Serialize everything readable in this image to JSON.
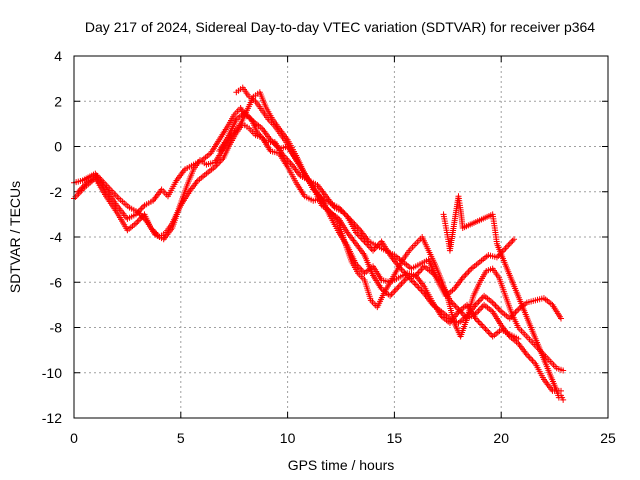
{
  "chart_data": {
    "type": "scatter",
    "title": "Day 217 of 2024, Sidereal Day-to-day VTEC variation (SDTVAR) for receiver p364",
    "xlabel": "GPS time / hours",
    "ylabel": "SDTVAR / TECUs",
    "xlim": [
      0,
      25
    ],
    "ylim": [
      -12,
      4
    ],
    "xticks": [
      0,
      5,
      10,
      15,
      20,
      25
    ],
    "yticks": [
      -12,
      -10,
      -8,
      -6,
      -4,
      -2,
      0,
      2,
      4
    ],
    "grid": true,
    "marker": "+",
    "color": "#ff0000",
    "series": [
      {
        "name": "track-1",
        "x": [
          0.0,
          0.4,
          1.0,
          1.5,
          2.0,
          2.5,
          2.9,
          3.3,
          3.7,
          4.1,
          4.4,
          4.8,
          5.2,
          5.6,
          6.0,
          6.4,
          6.8,
          7.2,
          7.5,
          7.8,
          8.0,
          8.3,
          8.6,
          9.0,
          9.4,
          9.8,
          10.2,
          10.6,
          11.0,
          11.4,
          11.8,
          12.2,
          12.6,
          13.0,
          13.4,
          13.8,
          14.2,
          14.6,
          15.0,
          15.4,
          15.8,
          16.2,
          16.6,
          17.0,
          17.4,
          17.8,
          18.2,
          18.6,
          19.0,
          19.4,
          19.8,
          20.2,
          20.6
        ],
        "y": [
          -1.6,
          -1.5,
          -1.2,
          -1.9,
          -2.6,
          -3.2,
          -3.0,
          -2.6,
          -2.4,
          -1.9,
          -2.2,
          -1.5,
          -1.0,
          -0.8,
          -0.6,
          -0.3,
          0.3,
          0.9,
          1.4,
          1.7,
          1.4,
          1.2,
          0.6,
          0.2,
          0.2,
          -0.4,
          -0.8,
          -1.3,
          -1.5,
          -1.7,
          -2.2,
          -2.7,
          -2.9,
          -3.3,
          -3.7,
          -4.2,
          -4.4,
          -4.6,
          -4.8,
          -5.1,
          -5.4,
          -5.2,
          -5.0,
          -5.9,
          -6.6,
          -6.3,
          -5.8,
          -5.4,
          -5.1,
          -4.8,
          -4.9,
          -4.5,
          -4.1
        ]
      },
      {
        "name": "track-2",
        "x": [
          0.0,
          0.5,
          1.0,
          1.5,
          2.0,
          2.5,
          2.9,
          3.3,
          3.6,
          4.0,
          4.3,
          4.6,
          5.0,
          5.4,
          5.8,
          6.2,
          6.6,
          7.0,
          7.3,
          7.6,
          7.9,
          8.2,
          8.5,
          8.8,
          9.2,
          9.6,
          10.0,
          10.4,
          10.8,
          11.2,
          11.6,
          12.0,
          12.4,
          12.8,
          13.2,
          13.6,
          14.0,
          14.4,
          14.8,
          15.2,
          15.6,
          16.0,
          16.4,
          16.8,
          17.2,
          17.6,
          18.0,
          18.4,
          18.8,
          19.2,
          19.6,
          20.0,
          20.4,
          20.8
        ],
        "y": [
          -2.3,
          -1.8,
          -1.4,
          -2.2,
          -2.9,
          -3.7,
          -3.4,
          -3.0,
          -3.6,
          -4.0,
          -3.8,
          -3.4,
          -2.6,
          -2.0,
          -1.5,
          -1.2,
          -0.9,
          -0.5,
          0.1,
          0.6,
          1.0,
          0.8,
          0.5,
          0.4,
          -0.2,
          -0.3,
          -0.9,
          -1.6,
          -2.2,
          -2.4,
          -2.3,
          -3.1,
          -3.8,
          -4.4,
          -5.2,
          -5.6,
          -5.3,
          -5.9,
          -6.0,
          -5.8,
          -5.6,
          -5.7,
          -6.2,
          -6.9,
          -7.5,
          -7.8,
          -7.3,
          -7.0,
          -7.6,
          -8.0,
          -8.4,
          -8.1,
          -8.3,
          -8.5
        ]
      },
      {
        "name": "track-3",
        "x": [
          0.2,
          0.6,
          1.1,
          1.6,
          2.1,
          2.6,
          3.0,
          3.4,
          3.8,
          4.2,
          4.6,
          5.0,
          5.3,
          5.6,
          5.9,
          6.2,
          6.6,
          7.0,
          7.4,
          7.8,
          8.1,
          8.4,
          8.7,
          9.0,
          9.3,
          9.6,
          10.0,
          10.4,
          10.8,
          11.2,
          11.6,
          12.0,
          12.4,
          12.8,
          13.2,
          13.6,
          14.0,
          14.4,
          14.8,
          15.2,
          15.6,
          16.0,
          16.4,
          16.8,
          17.2,
          17.6,
          18.0,
          18.4,
          18.8,
          19.2,
          19.6,
          20.0,
          20.4,
          20.8,
          21.2,
          21.6,
          22.0,
          22.4,
          22.8
        ],
        "y": [
          -2.0,
          -1.6,
          -1.3,
          -1.8,
          -2.3,
          -2.7,
          -2.9,
          -3.3,
          -3.9,
          -4.1,
          -3.6,
          -2.5,
          -1.7,
          -1.0,
          -0.6,
          -0.8,
          -0.7,
          -0.1,
          0.5,
          1.0,
          1.6,
          2.2,
          2.4,
          1.7,
          1.2,
          0.8,
          0.3,
          -0.4,
          -1.2,
          -1.8,
          -2.6,
          -2.9,
          -3.2,
          -3.8,
          -4.3,
          -4.8,
          -5.7,
          -6.3,
          -6.6,
          -6.2,
          -5.8,
          -5.7,
          -5.3,
          -5.6,
          -6.0,
          -6.8,
          -7.2,
          -7.6,
          -7.4,
          -7.0,
          -7.3,
          -7.9,
          -8.4,
          -8.7,
          -9.2,
          -9.6,
          -10.3,
          -10.8,
          -10.8
        ]
      },
      {
        "name": "track-4",
        "x": [
          7.6,
          7.9,
          8.2,
          8.5,
          8.8,
          9.1,
          9.4,
          9.7,
          10.0,
          10.3,
          10.6,
          10.9,
          11.2,
          11.5,
          11.8,
          12.1,
          12.4,
          12.7,
          13.0,
          13.3,
          13.6,
          13.9,
          14.2,
          14.5,
          14.8,
          15.1,
          15.4,
          15.7,
          16.0,
          16.3,
          16.6,
          16.9,
          17.2,
          17.5,
          17.8,
          18.1,
          18.4,
          18.7,
          19.0,
          19.3,
          19.6,
          19.9,
          20.2,
          20.5,
          20.8,
          21.1,
          21.4,
          21.7,
          22.0,
          22.3,
          22.6,
          22.9
        ],
        "y": [
          2.4,
          2.6,
          2.2,
          2.0,
          1.6,
          1.2,
          0.9,
          0.5,
          0.1,
          -0.4,
          -0.9,
          -1.4,
          -1.8,
          -2.2,
          -2.7,
          -3.0,
          -3.4,
          -4.3,
          -5.1,
          -5.6,
          -5.9,
          -6.8,
          -7.1,
          -6.5,
          -6.0,
          -5.5,
          -5.0,
          -4.6,
          -4.3,
          -4.0,
          -4.6,
          -5.2,
          -5.9,
          -6.7,
          -7.8,
          -8.4,
          -7.6,
          -6.6,
          -6.0,
          -5.5,
          -5.4,
          -5.8,
          -6.6,
          -7.4,
          -8.0,
          -8.3,
          -8.6,
          -8.9,
          -9.2,
          -9.5,
          -9.8,
          -9.9
        ]
      },
      {
        "name": "track-5",
        "x": [
          6.8,
          7.2,
          7.6,
          8.0,
          8.4,
          8.8,
          9.2,
          9.6,
          10.0,
          10.4,
          10.8,
          11.2,
          11.6,
          12.0,
          12.4,
          12.8,
          13.2,
          13.6,
          14.0,
          14.4,
          14.8,
          15.2,
          15.6,
          16.0,
          16.4,
          16.8,
          17.2,
          17.6,
          18.0,
          18.4,
          18.8,
          19.2,
          19.6,
          20.0,
          20.4,
          20.8,
          21.2,
          21.6,
          22.0,
          22.4,
          22.8
        ],
        "y": [
          -0.2,
          0.4,
          1.2,
          1.5,
          1.1,
          0.8,
          0.3,
          -0.1,
          0.0,
          -0.6,
          -1.2,
          -1.9,
          -2.3,
          -2.5,
          -2.7,
          -3.1,
          -3.8,
          -4.2,
          -4.6,
          -4.2,
          -4.8,
          -5.3,
          -5.7,
          -6.1,
          -6.5,
          -7.0,
          -7.3,
          -7.6,
          -7.8,
          -7.5,
          -7.0,
          -6.6,
          -6.9,
          -7.3,
          -7.6,
          -7.2,
          -6.9,
          -6.8,
          -6.7,
          -7.0,
          -7.6
        ]
      },
      {
        "name": "spikes",
        "x": [
          17.3,
          17.4,
          17.5,
          17.6,
          18.0,
          18.1,
          18.2,
          19.6,
          19.7,
          19.8,
          22.6,
          22.7,
          22.8,
          22.9
        ],
        "y": [
          -3.0,
          -3.5,
          -4.0,
          -4.6,
          -2.2,
          -2.8,
          -3.6,
          -3.0,
          -3.6,
          -4.3,
          -10.8,
          -11.1,
          -11.0,
          -11.2
        ]
      }
    ]
  }
}
